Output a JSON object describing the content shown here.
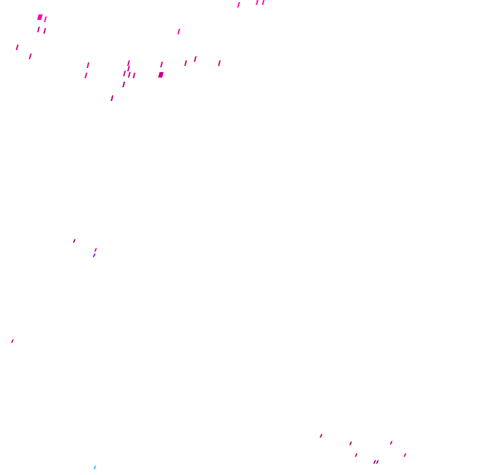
{
  "background_color": "#ffffff",
  "colors": {
    "bright_magenta": "#ff00b4",
    "magenta": "#e0009a",
    "deep_magenta": "#c8008c",
    "dark_magenta": "#a00070",
    "violet": "#8000ff",
    "cyan": "#00c8ff"
  }
}
